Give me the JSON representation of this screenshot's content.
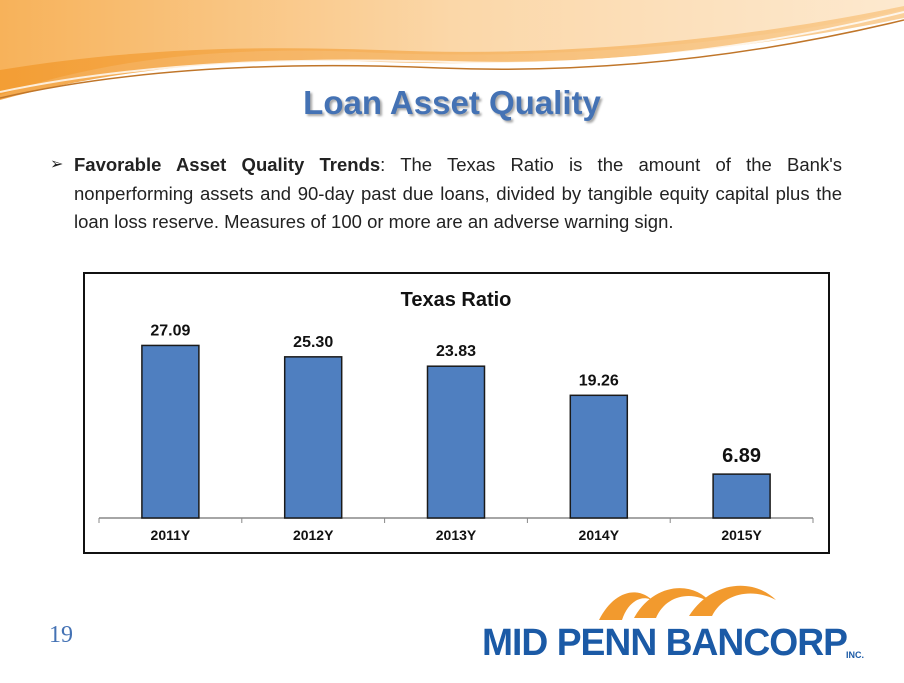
{
  "slide": {
    "title": "Loan Asset Quality",
    "page_number": "19"
  },
  "bullet": {
    "icon": "arrow-bullet-icon",
    "lead": "Favorable Asset Quality Trends",
    "text": ":  The Texas Ratio is the amount of the Bank's nonperforming assets and 90-day past due loans, divided by tangible equity capital plus the loan loss reserve.  Measures of 100 or more are an adverse warning sign."
  },
  "logo": {
    "text": "MID PENN BANCORP",
    "suffix": "INC."
  },
  "chart_data": {
    "type": "bar",
    "title": "Texas Ratio",
    "categories": [
      "2011Y",
      "2012Y",
      "2013Y",
      "2014Y",
      "2015Y"
    ],
    "values": [
      27.09,
      25.3,
      23.83,
      19.26,
      6.89
    ],
    "value_labels": [
      "27.09",
      "25.30",
      "23.83",
      "19.26",
      "6.89"
    ],
    "ylim": [
      0,
      30
    ],
    "grid": false,
    "bar_color": "#4f7fc0"
  },
  "colors": {
    "title": "#4472b4",
    "banner_orange": "#f4a23a",
    "logo_blue": "#1b5aa6"
  }
}
